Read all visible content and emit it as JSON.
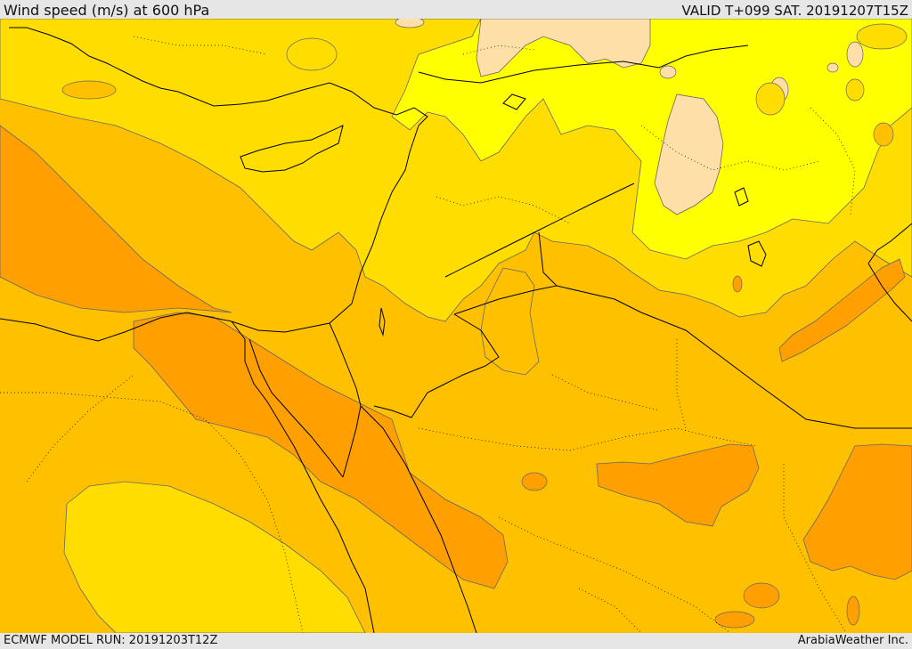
{
  "header": {
    "title": "Wind speed (m/s) at 600 hPa",
    "valid": "VALID T+099 SAT. 20191207T15Z"
  },
  "footer": {
    "model_run": "ECMWF MODEL RUN: 20191203T12Z",
    "credit": "ArabiaWeather Inc."
  },
  "colors": {
    "very_light": "#ffdfa8",
    "light_yellow": "#ffff00",
    "gold": "#ffdd00",
    "amber": "#ffc000",
    "orange": "#ff9f00",
    "coastline": "#000000",
    "contour": "#666666"
  }
}
